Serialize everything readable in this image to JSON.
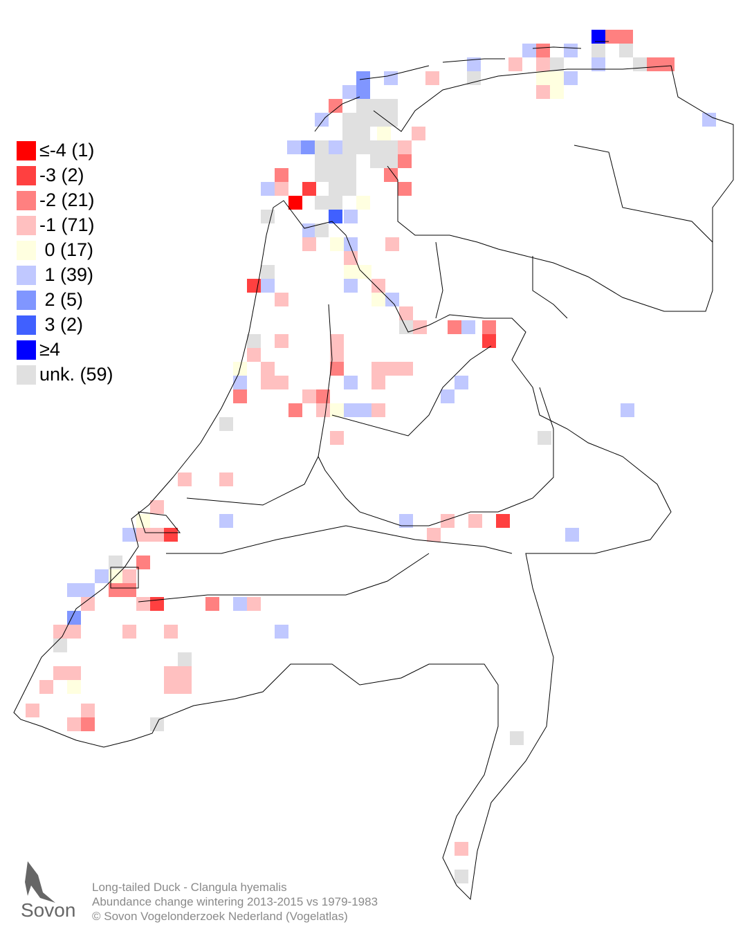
{
  "legend": {
    "items": [
      {
        "label": "≤-4 (1)",
        "color": "#ff0000"
      },
      {
        "label": "-3 (2)",
        "color": "#ff4040"
      },
      {
        "label": "-2 (21)",
        "color": "#ff8080"
      },
      {
        "label": "-1 (71)",
        "color": "#ffc0c0"
      },
      {
        "label": " 0 (17)",
        "color": "#ffffe0"
      },
      {
        "label": " 1 (39)",
        "color": "#c0c8ff"
      },
      {
        "label": " 2 (5)",
        "color": "#8096ff"
      },
      {
        "label": " 3 (2)",
        "color": "#4060ff"
      },
      {
        "label": "≥4",
        "color": "#0000ff"
      },
      {
        "label": "unk. (59)",
        "color": "#e0e0e0"
      }
    ]
  },
  "caption": {
    "lines": [
      "Long-tailed Duck - Clangula hyemalis",
      "Abundance change wintering  2013-2015 vs 1979-1983",
      "© Sovon Vogelonderzoek Nederland (Vogelatlas)"
    ]
  },
  "logo": {
    "text": "Sovon"
  }
}
